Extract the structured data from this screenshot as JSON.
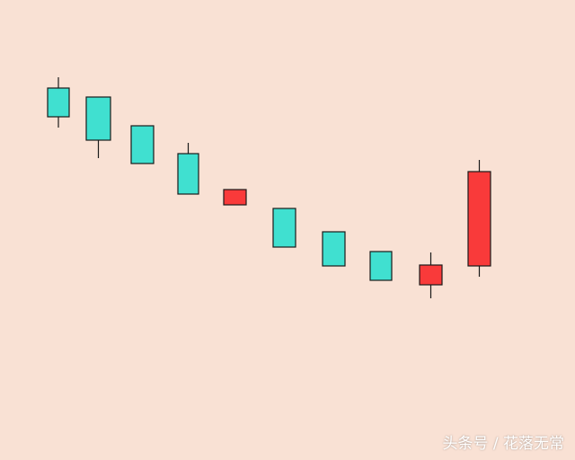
{
  "chart_data": {
    "type": "candlestick",
    "title": "",
    "xlabel": "",
    "ylabel": "",
    "axes_visible": false,
    "grid": false,
    "colors": {
      "background": "#f9e1d4",
      "up": "#f93a3a",
      "down": "#40e0d0",
      "outline": "#1a1a1a"
    },
    "candles": [
      {
        "open": 302,
        "high": 314,
        "low": 258,
        "close": 270
      },
      {
        "open": 292,
        "high": 292,
        "low": 224,
        "close": 244
      },
      {
        "open": 260,
        "high": 260,
        "low": 218,
        "close": 218
      },
      {
        "open": 229,
        "high": 241,
        "low": 184,
        "close": 184
      },
      {
        "open": 172,
        "high": 189,
        "low": 172,
        "close": 189
      },
      {
        "open": 168,
        "high": 168,
        "low": 125,
        "close": 125
      },
      {
        "open": 142,
        "high": 142,
        "low": 104,
        "close": 104
      },
      {
        "open": 120,
        "high": 120,
        "low": 88,
        "close": 88
      },
      {
        "open": 83,
        "high": 119,
        "low": 68,
        "close": 105
      },
      {
        "open": 104,
        "high": 222,
        "low": 92,
        "close": 209
      }
    ]
  },
  "watermark": "头条号 / 花落无常"
}
